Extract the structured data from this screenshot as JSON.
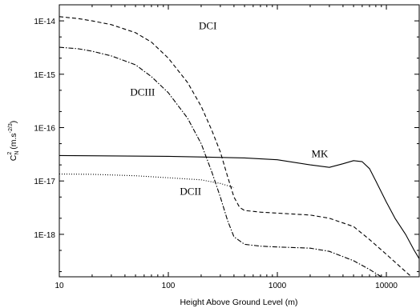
{
  "chart_data": {
    "type": "line",
    "title": "",
    "xlabel": "Height Above Ground Level (m)",
    "ylabel": {
      "main": "C",
      "sub": "N",
      "sup": "2",
      "unit": " (m.s",
      "unit_sup": "-2/3",
      "unit_close": ")"
    },
    "xscale": "log",
    "yscale": "log",
    "xlim": [
      10,
      20000
    ],
    "ylim": [
      1.6e-19,
      2e-14
    ],
    "grid": false,
    "legend": "none",
    "x_tick_labels": [
      "10",
      "100",
      "1000",
      "10000"
    ],
    "y_tick_labels": [
      "1E-14",
      "1E-15",
      "1E-16",
      "1E-17",
      "1E-18"
    ],
    "series": [
      {
        "name": "DCI",
        "style": "dashed",
        "points": [
          [
            10,
            1.2e-14
          ],
          [
            15,
            1.1e-14
          ],
          [
            20,
            1e-14
          ],
          [
            30,
            8.5e-15
          ],
          [
            50,
            6e-15
          ],
          [
            70,
            4e-15
          ],
          [
            100,
            2e-15
          ],
          [
            150,
            7e-16
          ],
          [
            200,
            2.5e-16
          ],
          [
            250,
            9e-17
          ],
          [
            300,
            3.5e-17
          ],
          [
            350,
            1.2e-17
          ],
          [
            400,
            5e-18
          ],
          [
            450,
            3.2e-18
          ],
          [
            500,
            2.8e-18
          ],
          [
            700,
            2.6e-18
          ],
          [
            1000,
            2.5e-18
          ],
          [
            2000,
            2.3e-18
          ],
          [
            3000,
            2e-18
          ],
          [
            5000,
            1.4e-18
          ],
          [
            7000,
            8e-19
          ],
          [
            10000,
            4.2e-19
          ],
          [
            15000,
            2e-19
          ],
          [
            17000,
            1.6e-19
          ]
        ]
      },
      {
        "name": "DCIII",
        "style": "dashdot",
        "points": [
          [
            10,
            3.2e-15
          ],
          [
            15,
            3e-15
          ],
          [
            20,
            2.7e-15
          ],
          [
            30,
            2.2e-15
          ],
          [
            50,
            1.5e-15
          ],
          [
            70,
            9e-16
          ],
          [
            100,
            4.5e-16
          ],
          [
            150,
            1.5e-16
          ],
          [
            200,
            5e-17
          ],
          [
            250,
            1.5e-17
          ],
          [
            300,
            5e-18
          ],
          [
            350,
            1.8e-18
          ],
          [
            400,
            9e-19
          ],
          [
            500,
            6.5e-19
          ],
          [
            700,
            6e-19
          ],
          [
            1000,
            5.8e-19
          ],
          [
            2000,
            5.5e-19
          ],
          [
            3000,
            4.8e-19
          ],
          [
            5000,
            3.2e-19
          ],
          [
            7000,
            2.2e-19
          ],
          [
            9000,
            1.6e-19
          ]
        ]
      },
      {
        "name": "MK",
        "style": "solid",
        "points": [
          [
            10,
            3e-17
          ],
          [
            100,
            2.9e-17
          ],
          [
            500,
            2.7e-17
          ],
          [
            1000,
            2.5e-17
          ],
          [
            2000,
            2e-17
          ],
          [
            3000,
            1.8e-17
          ],
          [
            4000,
            2.1e-17
          ],
          [
            5000,
            2.4e-17
          ],
          [
            6000,
            2.3e-17
          ],
          [
            7000,
            1.7e-17
          ],
          [
            8000,
            1e-17
          ],
          [
            10000,
            4e-18
          ],
          [
            12000,
            2e-18
          ],
          [
            15000,
            1e-18
          ],
          [
            18000,
            5e-19
          ],
          [
            20000,
            3.5e-19
          ]
        ]
      },
      {
        "name": "DCII",
        "style": "dotted",
        "points": [
          [
            10,
            1.35e-17
          ],
          [
            20,
            1.33e-17
          ],
          [
            50,
            1.25e-17
          ],
          [
            100,
            1.15e-17
          ],
          [
            200,
            1.05e-17
          ],
          [
            300,
            9e-18
          ],
          [
            400,
            7.5e-18
          ]
        ]
      }
    ],
    "annotations": [
      {
        "text": "DCI",
        "x": 230,
        "y": 7e-15
      },
      {
        "text": "DCIII",
        "x": 58,
        "y": 4e-16
      },
      {
        "text": "MK",
        "x": 2450,
        "y": 2.8e-17
      },
      {
        "text": "DCII",
        "x": 160,
        "y": 5.5e-18
      }
    ]
  }
}
